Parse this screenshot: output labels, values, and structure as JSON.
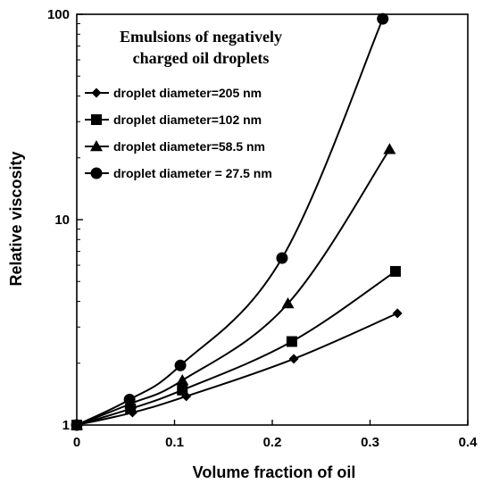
{
  "chart_data": {
    "type": "line",
    "xlabel": "Volume fraction of oil",
    "ylabel": "Relative viscosity",
    "xlim": [
      0,
      0.4
    ],
    "ylim": [
      1,
      100
    ],
    "yscale": "log",
    "x_ticks": [
      "0",
      "0.1",
      "0.2",
      "0.3",
      "0.4"
    ],
    "y_ticks": [
      "1",
      "10",
      "100"
    ],
    "grid": false,
    "legend_placement": "top-left",
    "legend_title": [
      "Emulsions of negatively",
      "charged oil droplets"
    ],
    "series": [
      {
        "name": "droplet diameter=205 nm",
        "marker": "diamond",
        "x": [
          0,
          0.057,
          0.112,
          0.222,
          0.328
        ],
        "y": [
          1.0,
          1.15,
          1.38,
          2.1,
          3.5
        ]
      },
      {
        "name": "droplet diameter=102 nm",
        "marker": "square",
        "x": [
          0,
          0.055,
          0.108,
          0.22,
          0.326
        ],
        "y": [
          1.0,
          1.2,
          1.48,
          2.55,
          5.6
        ]
      },
      {
        "name": "droplet diameter=58.5 nm",
        "marker": "triangle",
        "x": [
          0,
          0.055,
          0.108,
          0.216,
          0.32
        ],
        "y": [
          1.0,
          1.27,
          1.65,
          3.9,
          22
        ]
      },
      {
        "name": "droplet diameter = 27.5 nm",
        "marker": "circle",
        "x": [
          0,
          0.054,
          0.106,
          0.21,
          0.313
        ],
        "y": [
          1.0,
          1.33,
          1.95,
          6.5,
          95
        ]
      }
    ]
  }
}
